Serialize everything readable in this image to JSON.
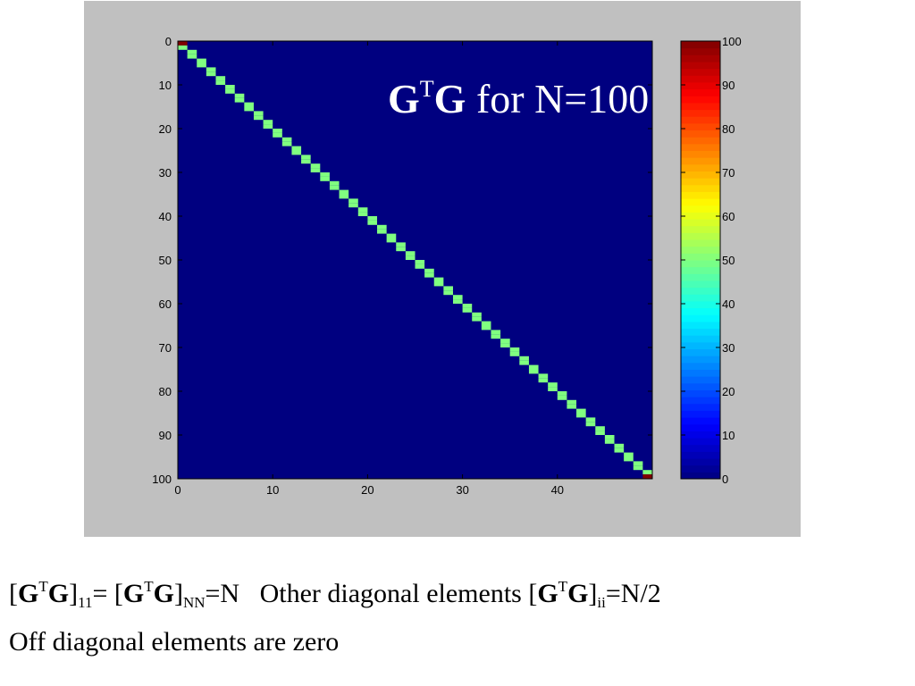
{
  "chart_data": {
    "type": "heatmap",
    "title": "GᵀG for N=100",
    "title_parts": {
      "g1": "G",
      "t": "T",
      "g2": "G",
      "rest": " for N=100"
    },
    "rows": 100,
    "cols": 50,
    "diagonal": {
      "first": 100,
      "middle": 50,
      "last": 100
    },
    "off_diagonal": 0,
    "x_ticks": [
      0,
      10,
      20,
      30,
      40
    ],
    "y_ticks": [
      0,
      10,
      20,
      30,
      40,
      50,
      60,
      70,
      80,
      90,
      100
    ],
    "colorbar_ticks": [
      0,
      10,
      20,
      30,
      40,
      50,
      60,
      70,
      80,
      90,
      100
    ],
    "clim": [
      0,
      100
    ],
    "colormap": "jet"
  },
  "caption": {
    "line1": {
      "a": "[",
      "b": "G",
      "c": "T",
      "d": "G",
      "e": "]",
      "f": "11",
      "g": "= [",
      "h": "G",
      "i": "T",
      "j": "G",
      "k": "]",
      "l": "NN",
      "m": "=N   Other diagonal elements [",
      "n": "G",
      "o": "T",
      "p": "G",
      "q": "]",
      "r": "ii",
      "s": "=N/2"
    },
    "line2": "Off diagonal elements are zero"
  }
}
